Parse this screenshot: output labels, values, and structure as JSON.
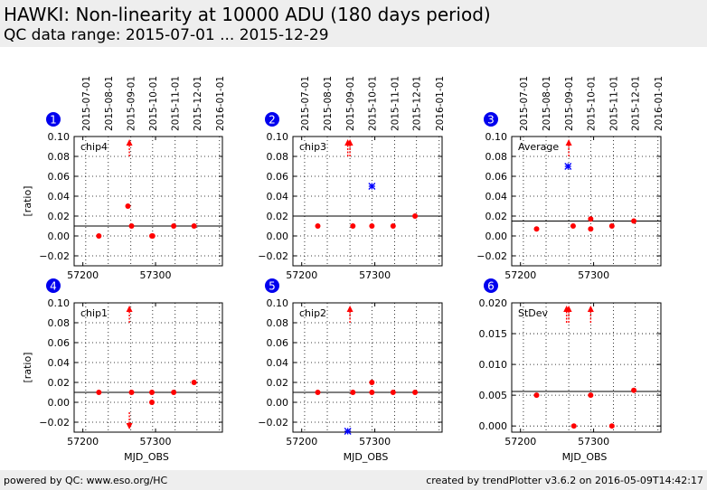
{
  "header": {
    "title": "HAWKI: Non-linearity at 10000 ADU (180 days period)",
    "subtitle": "QC data range: 2015-07-01 ... 2015-12-29"
  },
  "footer": {
    "left": "powered by QC: www.eso.org/HC",
    "right": "created by trendPlotter v3.6.2 on 2016-05-09T14:42:17"
  },
  "colors": {
    "data_point": "#ff0000",
    "outlier": "#0000ff",
    "badge": "#0000ee",
    "reference_line": "#000000",
    "header_bg": "#eeeeee"
  },
  "chart_data": [
    {
      "panel": "1",
      "type": "scatter",
      "label": "chip4",
      "xlim": [
        57188,
        57392
      ],
      "ylim": [
        -0.03,
        0.1
      ],
      "yticks": [
        -0.02,
        0.0,
        0.02,
        0.04,
        0.06,
        0.08,
        0.1
      ],
      "xticks": [
        57200,
        57300
      ],
      "ylabel": "[ratio]",
      "xlabel": "",
      "date_ticks": [
        "2015-07-01",
        "2015-08-01",
        "2015-09-01",
        "2015-10-01",
        "2015-11-01",
        "2015-12-01",
        "2016-01-01"
      ],
      "reference": 0.01,
      "points": [
        {
          "x": 57222,
          "y": 0.0
        },
        {
          "x": 57262,
          "y": 0.03
        },
        {
          "x": 57267,
          "y": 0.01
        },
        {
          "x": 57295,
          "y": 0.0
        },
        {
          "x": 57296,
          "y": 0.0
        },
        {
          "x": 57325,
          "y": 0.01
        },
        {
          "x": 57353,
          "y": 0.01
        }
      ],
      "outliers": [],
      "arrows_up": [
        57264
      ],
      "arrows_down": []
    },
    {
      "panel": "2",
      "type": "scatter",
      "label": "chip3",
      "xlim": [
        57188,
        57392
      ],
      "ylim": [
        -0.03,
        0.1
      ],
      "yticks": [
        -0.02,
        0.0,
        0.02,
        0.04,
        0.06,
        0.08,
        0.1
      ],
      "xticks": [
        57200,
        57300
      ],
      "ylabel": "",
      "xlabel": "",
      "date_ticks": [
        "2015-07-01",
        "2015-08-01",
        "2015-09-01",
        "2015-10-01",
        "2015-11-01",
        "2015-12-01",
        "2016-01-01"
      ],
      "reference": 0.02,
      "points": [
        {
          "x": 57222,
          "y": 0.01
        },
        {
          "x": 57270,
          "y": 0.01
        },
        {
          "x": 57296,
          "y": 0.01
        },
        {
          "x": 57325,
          "y": 0.01
        },
        {
          "x": 57355,
          "y": 0.02
        }
      ],
      "outliers": [
        {
          "x": 57296,
          "y": 0.05
        }
      ],
      "arrows_up": [
        57263,
        57266
      ],
      "arrows_down": []
    },
    {
      "panel": "3",
      "type": "scatter",
      "label": "Average",
      "xlim": [
        57188,
        57392
      ],
      "ylim": [
        -0.03,
        0.1
      ],
      "yticks": [
        -0.02,
        0.0,
        0.02,
        0.04,
        0.06,
        0.08,
        0.1
      ],
      "xticks": [
        57200,
        57300
      ],
      "ylabel": "",
      "xlabel": "",
      "date_ticks": [
        "2015-07-01",
        "2015-08-01",
        "2015-09-01",
        "2015-10-01",
        "2015-11-01",
        "2015-12-01",
        "2016-01-01"
      ],
      "reference": 0.015,
      "points": [
        {
          "x": 57222,
          "y": 0.007
        },
        {
          "x": 57272,
          "y": 0.01
        },
        {
          "x": 57296,
          "y": 0.017
        },
        {
          "x": 57296,
          "y": 0.007
        },
        {
          "x": 57325,
          "y": 0.01
        },
        {
          "x": 57355,
          "y": 0.015
        }
      ],
      "outliers": [
        {
          "x": 57265,
          "y": 0.07
        }
      ],
      "arrows_up": [
        57266
      ],
      "arrows_down": []
    },
    {
      "panel": "4",
      "type": "scatter",
      "label": "chip1",
      "xlim": [
        57188,
        57392
      ],
      "ylim": [
        -0.03,
        0.1
      ],
      "yticks": [
        -0.02,
        0.0,
        0.02,
        0.04,
        0.06,
        0.08,
        0.1
      ],
      "xticks": [
        57200,
        57300
      ],
      "ylabel": "[ratio]",
      "xlabel": "MJD_OBS",
      "reference": 0.01,
      "points": [
        {
          "x": 57222,
          "y": 0.01
        },
        {
          "x": 57267,
          "y": 0.01
        },
        {
          "x": 57295,
          "y": 0.01
        },
        {
          "x": 57295,
          "y": 0.0
        },
        {
          "x": 57325,
          "y": 0.01
        },
        {
          "x": 57353,
          "y": 0.02
        }
      ],
      "outliers": [],
      "arrows_up": [
        57264
      ],
      "arrows_down": [
        57264
      ]
    },
    {
      "panel": "5",
      "type": "scatter",
      "label": "chip2",
      "xlim": [
        57188,
        57392
      ],
      "ylim": [
        -0.03,
        0.1
      ],
      "yticks": [
        -0.02,
        0.0,
        0.02,
        0.04,
        0.06,
        0.08,
        0.1
      ],
      "xticks": [
        57200,
        57300
      ],
      "ylabel": "",
      "xlabel": "MJD_OBS",
      "reference": 0.01,
      "points": [
        {
          "x": 57222,
          "y": 0.01
        },
        {
          "x": 57270,
          "y": 0.01
        },
        {
          "x": 57296,
          "y": 0.02
        },
        {
          "x": 57296,
          "y": 0.01
        },
        {
          "x": 57325,
          "y": 0.01
        },
        {
          "x": 57355,
          "y": 0.01
        }
      ],
      "outliers": [
        {
          "x": 57263,
          "y": -0.03
        }
      ],
      "arrows_up": [
        57266
      ],
      "arrows_down": []
    },
    {
      "panel": "6",
      "type": "scatter",
      "label": "StDev",
      "xlim": [
        57188,
        57392
      ],
      "ylim": [
        -0.001,
        0.02
      ],
      "yticks": [
        0.0,
        0.005,
        0.01,
        0.015,
        0.02
      ],
      "ytick_labels": [
        "0.000",
        "0.005",
        "0.010",
        "0.015",
        "0.020"
      ],
      "xticks": [
        57200,
        57300
      ],
      "ylabel": "",
      "xlabel": "MJD_OBS",
      "reference": 0.0056,
      "points": [
        {
          "x": 57222,
          "y": 0.005
        },
        {
          "x": 57273,
          "y": 0.0
        },
        {
          "x": 57296,
          "y": 0.005
        },
        {
          "x": 57325,
          "y": 0.0
        },
        {
          "x": 57355,
          "y": 0.0058
        }
      ],
      "outliers": [],
      "arrows_up": [
        57263,
        57266,
        57296
      ],
      "arrows_down": []
    }
  ]
}
